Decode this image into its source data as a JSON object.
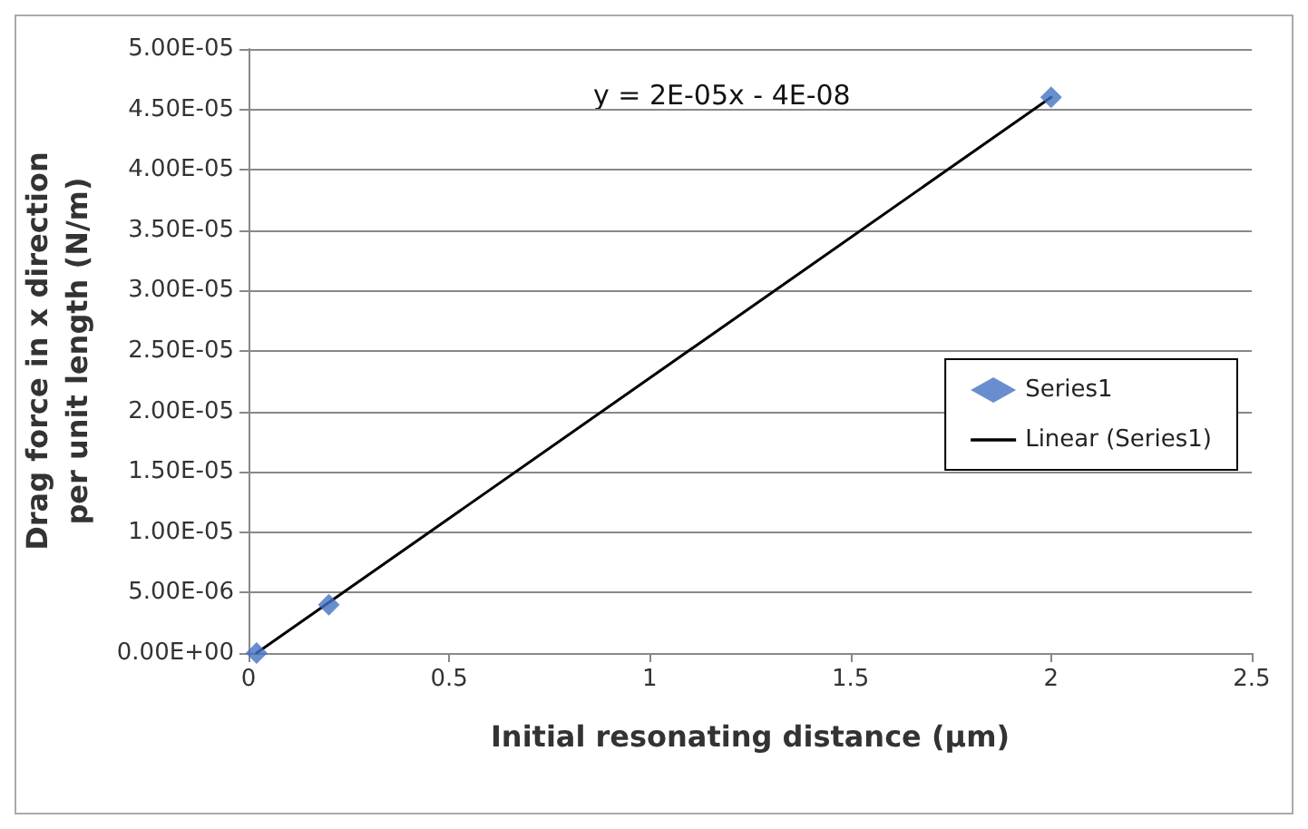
{
  "chart_data": {
    "type": "scatter",
    "xlabel": "Initial resonating distance (µm)",
    "ylabel": "Drag force in x direction per unit length (N/m)",
    "xlim": [
      0,
      2.5
    ],
    "xticks": [
      0,
      0.5,
      1,
      1.5,
      2,
      2.5
    ],
    "ylim": [
      0,
      5e-05
    ],
    "yticks": [
      {
        "value": 0,
        "label": "0.00E+00"
      },
      {
        "value": 5e-06,
        "label": "5.00E-06"
      },
      {
        "value": 1e-05,
        "label": "1.00E-05"
      },
      {
        "value": 1.5e-05,
        "label": "1.50E-05"
      },
      {
        "value": 2e-05,
        "label": "2.00E-05"
      },
      {
        "value": 2.5e-05,
        "label": "2.50E-05"
      },
      {
        "value": 3e-05,
        "label": "3.00E-05"
      },
      {
        "value": 3.5e-05,
        "label": "3.50E-05"
      },
      {
        "value": 4e-05,
        "label": "4.00E-05"
      },
      {
        "value": 4.5e-05,
        "label": "4.50E-05"
      },
      {
        "value": 5e-05,
        "label": "5.00E-05"
      }
    ],
    "grid": "y",
    "legend": "right",
    "annotations": [
      "y = 2E-05x - 4E-08"
    ],
    "series": [
      {
        "name": "Series1",
        "color": "#4472c4",
        "marker": "diamond",
        "x": [
          0.02,
          0.2,
          2
        ],
        "values": [
          0,
          4e-06,
          4.6e-05
        ]
      },
      {
        "name": "Linear (Series1)",
        "type": "line",
        "marker": "none",
        "color": "#000000",
        "line_style": "solid",
        "x": [
          0.02,
          2
        ],
        "values": [
          0,
          4.6e-05
        ]
      }
    ]
  }
}
